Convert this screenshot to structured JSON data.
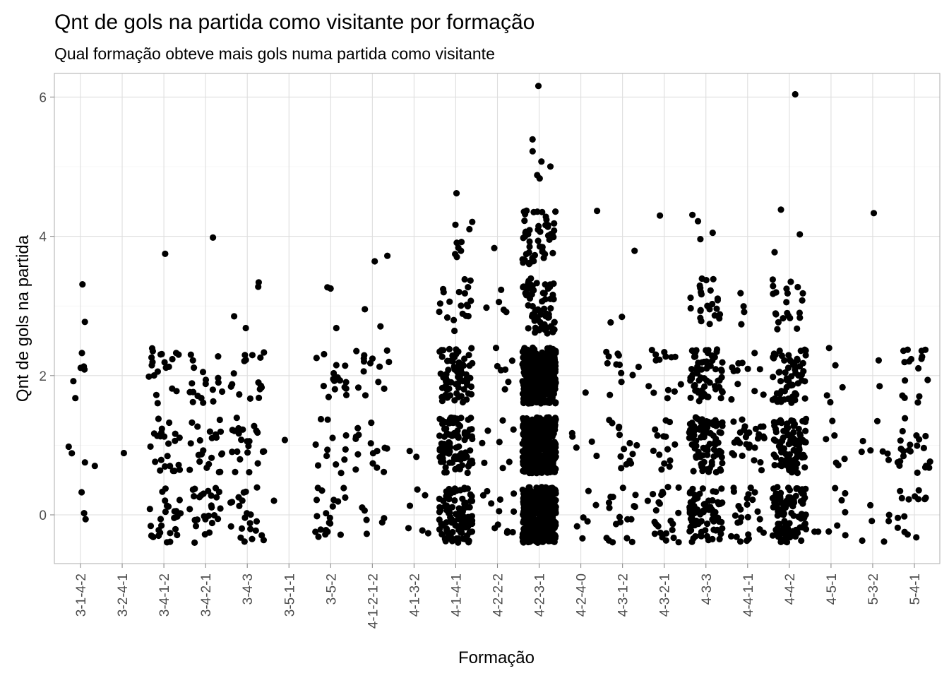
{
  "chart_data": {
    "type": "scatter",
    "title": "Qnt de gols na partida como visitante por formação",
    "subtitle": "Qual formação obteve mais gols numa partida como visitante",
    "xlabel": "Formação",
    "ylabel": "Qnt de gols na partida",
    "ylim": [
      -0.72,
      6.3
    ],
    "yticks": [
      0,
      2,
      4,
      6
    ],
    "grid": true,
    "jitter": {
      "x": 0.4,
      "y": 0.4
    },
    "categories": [
      "3-1-4-2",
      "3-2-4-1",
      "3-4-1-2",
      "3-4-2-1",
      "3-4-3",
      "3-5-1-1",
      "3-5-2",
      "4-1-2-1-2",
      "4-1-3-2",
      "4-1-4-1",
      "4-2-2-2",
      "4-2-3-1",
      "4-2-4-0",
      "4-3-1-2",
      "4-3-2-1",
      "4-3-3",
      "4-4-1-1",
      "4-4-2",
      "4-5-1",
      "5-3-2",
      "5-4-1"
    ],
    "goal_counts": [
      [
        3,
        4,
        6,
        2,
        0,
        0,
        0
      ],
      [
        0,
        1,
        0,
        0,
        0,
        0,
        0
      ],
      [
        26,
        23,
        20,
        0,
        1,
        0,
        0
      ],
      [
        28,
        22,
        19,
        0,
        1,
        0,
        0
      ],
      [
        22,
        22,
        16,
        4,
        0,
        0,
        0
      ],
      [
        1,
        1,
        0,
        0,
        0,
        0,
        0
      ],
      [
        20,
        12,
        16,
        3,
        0,
        0,
        0
      ],
      [
        6,
        15,
        14,
        2,
        2,
        0,
        0
      ],
      [
        6,
        2,
        0,
        0,
        0,
        0,
        0
      ],
      [
        110,
        95,
        70,
        20,
        9,
        1,
        0
      ],
      [
        12,
        8,
        7,
        5,
        1,
        0,
        0
      ],
      [
        420,
        460,
        330,
        70,
        50,
        6,
        1
      ],
      [
        6,
        5,
        1,
        0,
        1,
        0,
        0
      ],
      [
        18,
        14,
        12,
        2,
        1,
        0,
        0
      ],
      [
        24,
        14,
        14,
        0,
        1,
        0,
        0
      ],
      [
        80,
        95,
        65,
        24,
        4,
        0,
        0
      ],
      [
        25,
        30,
        12,
        4,
        0,
        0,
        0
      ],
      [
        100,
        90,
        60,
        22,
        3,
        0,
        1
      ],
      [
        9,
        6,
        5,
        0,
        0,
        0,
        0
      ],
      [
        6,
        7,
        2,
        0,
        1,
        0,
        0
      ],
      [
        14,
        22,
        16,
        0,
        0,
        0,
        0
      ]
    ]
  }
}
